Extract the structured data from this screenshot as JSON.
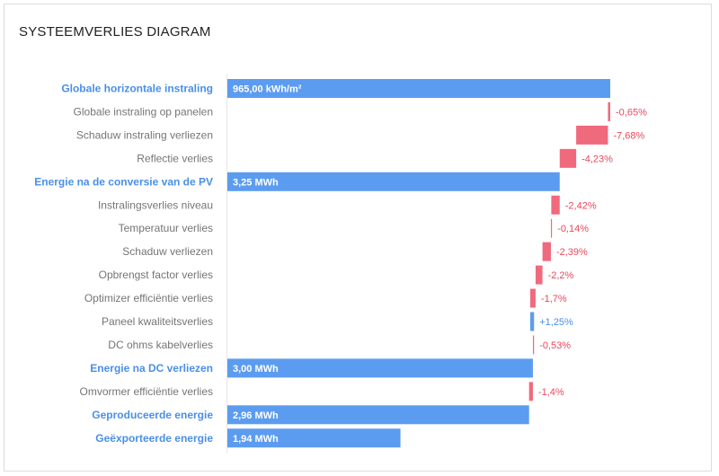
{
  "title": "SYSTEEMVERLIES DIAGRAM",
  "colors": {
    "total": "#5b9cf0",
    "loss": "#f06a7d",
    "gain": "#5b9cf0",
    "label_total": "#4a8fe6",
    "label_step": "#757575",
    "value_loss": "#e8485c",
    "value_gain": "#4a8fe6"
  },
  "chart_data": {
    "type": "bar",
    "subtype": "waterfall-horizontal",
    "title": "SYSTEEMVERLIES DIAGRAM",
    "xlim": [
      0,
      100
    ],
    "rows": [
      {
        "label": "Globale horizontale instraling",
        "kind": "total",
        "value": 100,
        "text": "965,00 kWh/m²"
      },
      {
        "label": "Globale instraling op panelen",
        "kind": "step",
        "start": 100,
        "end": 99.4,
        "text": "-0,65%"
      },
      {
        "label": "Schaduw instraling verliezen",
        "kind": "step",
        "start": 99.4,
        "end": 91.1,
        "text": "-7,68%"
      },
      {
        "label": "Reflectie verlies",
        "kind": "step",
        "start": 91.1,
        "end": 86.8,
        "text": "-4,23%"
      },
      {
        "label": "Energie na de conversie van de PV",
        "kind": "total",
        "value": 86.8,
        "text": "3,25 MWh"
      },
      {
        "label": "Instralingsverlies niveau",
        "kind": "step",
        "start": 86.8,
        "end": 84.6,
        "text": "-2,42%"
      },
      {
        "label": "Temperatuur verlies",
        "kind": "step",
        "start": 84.6,
        "end": 84.5,
        "text": "-0,14%"
      },
      {
        "label": "Schaduw verliezen",
        "kind": "step",
        "start": 84.5,
        "end": 82.3,
        "text": "-2,39%"
      },
      {
        "label": "Opbrengst factor verlies",
        "kind": "step",
        "start": 82.3,
        "end": 80.5,
        "text": "-2,2%"
      },
      {
        "label": "Optimizer efficiëntie verlies",
        "kind": "step",
        "start": 80.5,
        "end": 79.1,
        "text": "-1,7%"
      },
      {
        "label": "Paneel kwaliteitsverlies",
        "kind": "step",
        "start": 79.1,
        "end": 80.1,
        "text": "+1,25%"
      },
      {
        "label": "DC ohms kabelverlies",
        "kind": "step",
        "start": 80.1,
        "end": 79.8,
        "text": "-0,53%"
      },
      {
        "label": "Energie na DC verliezen",
        "kind": "total",
        "value": 79.8,
        "text": "3,00 MWh"
      },
      {
        "label": "Omvormer efficiëntie verlies",
        "kind": "step",
        "start": 79.8,
        "end": 78.8,
        "text": "-1,4%"
      },
      {
        "label": "Geproduceerde energie",
        "kind": "total",
        "value": 78.8,
        "text": "2,96 MWh"
      },
      {
        "label": "Geëxporteerde energie",
        "kind": "total",
        "value": 45.2,
        "text": "1,94 MWh"
      }
    ]
  }
}
